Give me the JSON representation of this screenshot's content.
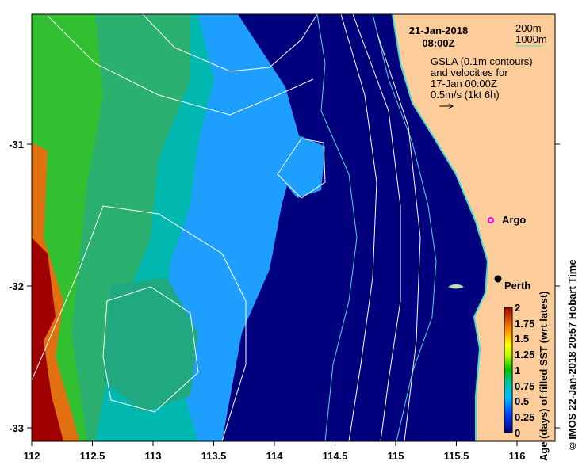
{
  "title": {
    "date": "21-Jan-2018",
    "time": "08:00Z"
  },
  "depth_legend": {
    "shallow": "200m",
    "deep": "1000m"
  },
  "gsla_note": [
    "GSLA (0.1m contours)",
    "and velocities for",
    "17-Jan 00:00Z",
    "0.5m/s (1kt 6h)"
  ],
  "places": {
    "argo": "Argo",
    "perth": "Perth"
  },
  "axes": {
    "x_ticks": [
      "112",
      "112.5",
      "113",
      "113.5",
      "114",
      "114.5",
      "115",
      "115.5",
      "116"
    ],
    "y_ticks": [
      "-31",
      "-32",
      "-33"
    ]
  },
  "colorbar": {
    "label": "Age (days) of filled SST (wrt latest)",
    "ticks": [
      "0",
      "0.25",
      "0.5",
      "0.75",
      "1",
      "1.25",
      "1.5",
      "1.75",
      "2"
    ],
    "range": [
      0,
      2
    ]
  },
  "credit": "© IMOS 22-Jan-2018 20:57 Hobart Time",
  "colors": {
    "land": "#fccc9a",
    "ocean_fresh": "#00008b",
    "contour": "#ffffff",
    "isobath": "#40e0d0"
  }
}
